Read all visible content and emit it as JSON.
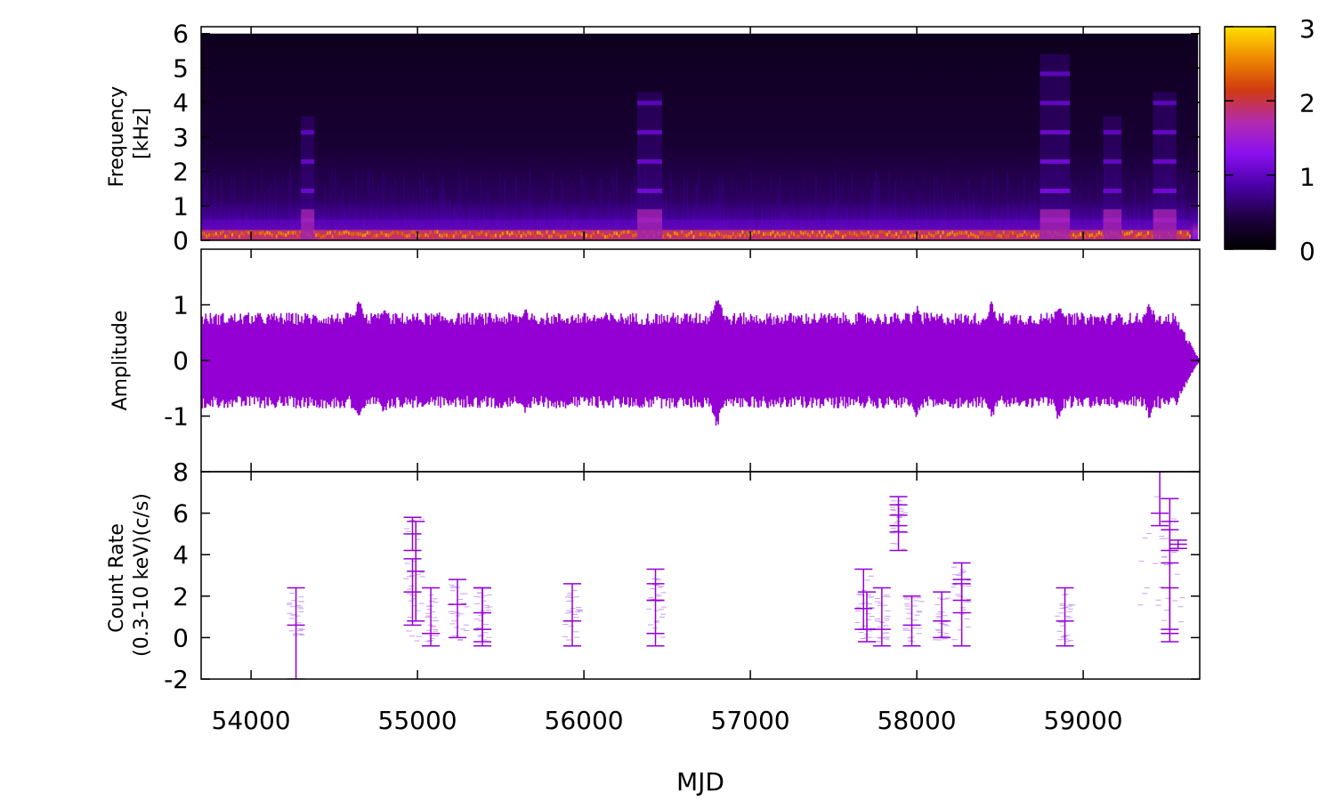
{
  "chart_data": [
    {
      "type": "heatmap",
      "name": "spectrogram",
      "ylabel_lines": [
        "Frequency",
        "[kHz]"
      ],
      "xlim": [
        53700,
        59700
      ],
      "ylim": [
        0,
        6.2
      ],
      "data_ylim": [
        0,
        6
      ],
      "yticks": [
        0,
        1,
        2,
        3,
        4,
        5,
        6
      ],
      "colorbar": {
        "range": [
          0,
          3
        ],
        "ticks": [
          0,
          1,
          2,
          3
        ]
      },
      "colormap": [
        "#000000",
        "#1e0040",
        "#4a00a8",
        "#8a10f0",
        "#b32bb0",
        "#d13a10",
        "#ee8800",
        "#ffe000"
      ],
      "baseline_level": 0.35,
      "low_freq_band": {
        "kHz_max": 0.6,
        "level": 1.3
      },
      "bright_episodes": [
        {
          "x": [
            54300,
            54380
          ],
          "kHz_max": 3.6
        },
        {
          "x": [
            56320,
            56470
          ],
          "kHz_max": 4.3
        },
        {
          "x": [
            58740,
            58920
          ],
          "kHz_max": 5.4
        },
        {
          "x": [
            59120,
            59230
          ],
          "kHz_max": 3.6
        },
        {
          "x": [
            59420,
            59560
          ],
          "kHz_max": 4.3
        }
      ]
    },
    {
      "type": "line",
      "name": "amplitude",
      "ylabel": "Amplitude",
      "xlim": [
        53700,
        59700
      ],
      "ylim": [
        -2,
        2
      ],
      "yticks": [
        -1,
        0,
        1
      ],
      "color": "#9400d3",
      "typical_envelope": 0.75,
      "envelope_peaks": [
        {
          "x": 54650,
          "value": 1.15
        },
        {
          "x": 54800,
          "value": 1.0
        },
        {
          "x": 55650,
          "value": 1.0
        },
        {
          "x": 56800,
          "value": 1.25
        },
        {
          "x": 58000,
          "value": 1.05
        },
        {
          "x": 58450,
          "value": 1.1
        },
        {
          "x": 58850,
          "value": 1.1
        },
        {
          "x": 59400,
          "value": 1.1
        }
      ],
      "taper_x": [
        59550,
        59700
      ]
    },
    {
      "type": "scatter",
      "name": "count-rate",
      "ylabel_lines": [
        "Count Rate",
        "(0.3-10 keV)(c/s)"
      ],
      "xlabel": "MJD",
      "xlim": [
        53700,
        59700
      ],
      "ylim": [
        -2,
        8
      ],
      "yticks": [
        -2,
        0,
        2,
        4,
        6,
        8
      ],
      "xticks": [
        54000,
        55000,
        56000,
        57000,
        58000,
        59000
      ],
      "color": "#9400d3",
      "points": [
        {
          "x": 54270,
          "y": 0.6,
          "yerr_low": 2.6,
          "yerr_high": 1.8
        },
        {
          "x": 54970,
          "y": 5.0,
          "yerr_low": 0.8,
          "yerr_high": 0.8
        },
        {
          "x": 54970,
          "y": 2.2,
          "yerr_low": 1.6,
          "yerr_high": 1.6
        },
        {
          "x": 54990,
          "y": 3.2,
          "yerr_low": 2.4,
          "yerr_high": 2.4
        },
        {
          "x": 55080,
          "y": 0.2,
          "yerr_low": 0.6,
          "yerr_high": 2.2
        },
        {
          "x": 55240,
          "y": 1.6,
          "yerr_low": 1.6,
          "yerr_high": 1.2
        },
        {
          "x": 55390,
          "y": 0.4,
          "yerr_low": 0.8,
          "yerr_high": 2.0
        },
        {
          "x": 55390,
          "y": 1.2,
          "yerr_low": 1.4,
          "yerr_high": 1.2
        },
        {
          "x": 55930,
          "y": 0.8,
          "yerr_low": 1.2,
          "yerr_high": 1.8
        },
        {
          "x": 56430,
          "y": 2.6,
          "yerr_low": 0.8,
          "yerr_high": 0.7
        },
        {
          "x": 56430,
          "y": 0.2,
          "yerr_low": 0.6,
          "yerr_high": 1.6
        },
        {
          "x": 57680,
          "y": 1.4,
          "yerr_low": 1.0,
          "yerr_high": 1.9
        },
        {
          "x": 57700,
          "y": 0.4,
          "yerr_low": 0.6,
          "yerr_high": 1.8
        },
        {
          "x": 57790,
          "y": 0.4,
          "yerr_low": 0.8,
          "yerr_high": 2.0
        },
        {
          "x": 57890,
          "y": 5.4,
          "yerr_low": 1.2,
          "yerr_high": 1.4
        },
        {
          "x": 57890,
          "y": 5.9,
          "yerr_low": 0.8,
          "yerr_high": 0.5
        },
        {
          "x": 57970,
          "y": 0.6,
          "yerr_low": 1.0,
          "yerr_high": 1.4
        },
        {
          "x": 58150,
          "y": 0.8,
          "yerr_low": 0.8,
          "yerr_high": 1.4
        },
        {
          "x": 58270,
          "y": 2.8,
          "yerr_low": 1.0,
          "yerr_high": 0.8
        },
        {
          "x": 58270,
          "y": 1.2,
          "yerr_low": 1.6,
          "yerr_high": 1.4
        },
        {
          "x": 58890,
          "y": 0.8,
          "yerr_low": 1.2,
          "yerr_high": 1.6
        },
        {
          "x": 59460,
          "y": 6.0,
          "yerr_low": 0.6,
          "yerr_high": 2.0
        },
        {
          "x": 59520,
          "y": 5.6,
          "yerr_low": 1.4,
          "yerr_high": 1.1
        },
        {
          "x": 59520,
          "y": 3.6,
          "yerr_low": 3.2,
          "yerr_high": 1.6
        },
        {
          "x": 59520,
          "y": 0.2,
          "yerr_low": 0.4,
          "yerr_high": 2.2
        },
        {
          "x": 59570,
          "y": 4.5,
          "yerr_low": 0.2,
          "yerr_high": 0.2
        }
      ],
      "faint_point_clusters": [
        {
          "x": [
            54230,
            54310
          ],
          "y": [
            0,
            2.4
          ]
        },
        {
          "x": [
            54930,
            55030
          ],
          "y": [
            -0.2,
            5.8
          ]
        },
        {
          "x": [
            55060,
            55120
          ],
          "y": [
            -0.2,
            2.2
          ]
        },
        {
          "x": [
            55190,
            55300
          ],
          "y": [
            -0.2,
            2.8
          ]
        },
        {
          "x": [
            55350,
            55440
          ],
          "y": [
            -0.2,
            2.2
          ]
        },
        {
          "x": [
            55880,
            55980
          ],
          "y": [
            -0.2,
            2.4
          ]
        },
        {
          "x": [
            56390,
            56480
          ],
          "y": [
            0,
            3.0
          ]
        },
        {
          "x": [
            57640,
            57740
          ],
          "y": [
            -0.2,
            3.0
          ]
        },
        {
          "x": [
            57760,
            57830
          ],
          "y": [
            -0.2,
            2.2
          ]
        },
        {
          "x": [
            57850,
            57940
          ],
          "y": [
            4.2,
            6.6
          ]
        },
        {
          "x": [
            57930,
            58030
          ],
          "y": [
            -0.2,
            2.0
          ]
        },
        {
          "x": [
            58110,
            58190
          ],
          "y": [
            -0.2,
            2.0
          ]
        },
        {
          "x": [
            58220,
            58320
          ],
          "y": [
            -0.2,
            3.4
          ]
        },
        {
          "x": [
            58840,
            58940
          ],
          "y": [
            -0.2,
            2.2
          ]
        },
        {
          "x": [
            59340,
            59600
          ],
          "y": [
            0,
            6.8
          ]
        }
      ]
    }
  ]
}
